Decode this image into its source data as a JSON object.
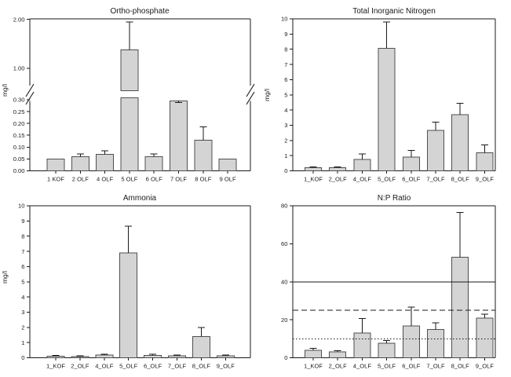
{
  "figure": {
    "background": "#ffffff",
    "bar_fill": "#d4d4d4",
    "bar_stroke": "#4f4f4f",
    "axis_color": "#1a1a1a"
  },
  "chart_data": [
    {
      "id": "ortho-phosphate",
      "type": "bar",
      "title": "Ortho-phosphate",
      "ylabel": "mg/l",
      "legend": "none",
      "grid": false,
      "categories": [
        "1 KOF",
        "2 OLF",
        "4 OLF",
        "5 OLF",
        "6 OLF",
        "7 OLF",
        "8 OLF",
        "9 OLF"
      ],
      "values": [
        0.05,
        0.06,
        0.07,
        1.38,
        0.06,
        0.295,
        0.13,
        0.05
      ],
      "errors_plus": [
        0,
        0.012,
        0.015,
        0.57,
        0.012,
        0.008,
        0.055,
        0
      ],
      "axis_break": {
        "lower_ylim": [
          0,
          0.3
        ],
        "lower_tick_values": [
          0,
          0.05,
          0.1,
          0.15,
          0.2,
          0.25,
          0.3
        ],
        "lower_tick_labels": [
          "0.00",
          "0.05",
          "0.10",
          "0.15",
          "0.20",
          "0.25",
          "0.30"
        ],
        "upper_tick_values": [
          1.0,
          2.0
        ],
        "upper_tick_labels": [
          "1.00",
          "2.00"
        ]
      }
    },
    {
      "id": "total-inorganic-nitrogen",
      "type": "bar",
      "title": "Total Inorganic Nitrogen",
      "ylabel": "mg/l",
      "legend": "none",
      "grid": false,
      "categories": [
        "1_KOF",
        "2_OLF",
        "4_OLF",
        "5_OLF",
        "6_OLF",
        "7_OLF",
        "8_OLF",
        "9_OLF"
      ],
      "values": [
        0.2,
        0.2,
        0.75,
        8.05,
        0.9,
        2.65,
        3.7,
        1.2
      ],
      "errors_plus": [
        0.07,
        0.07,
        0.35,
        1.75,
        0.45,
        0.55,
        0.75,
        0.5
      ],
      "ylim": [
        0,
        10
      ],
      "tick_values": [
        0,
        1,
        2,
        3,
        4,
        5,
        6,
        7,
        8,
        9,
        10
      ],
      "tick_labels": [
        "0",
        "1",
        "2",
        "3",
        "4",
        "5",
        "6",
        "7",
        "8",
        "9",
        "10"
      ]
    },
    {
      "id": "ammonia",
      "type": "bar",
      "title": "Ammonia",
      "ylabel": "mg/l",
      "legend": "none",
      "grid": false,
      "categories": [
        "1_KOF",
        "2_OLF",
        "4_OLF",
        "5_OLF",
        "6_OLF",
        "7_OLF",
        "8_OLF",
        "9_OLF"
      ],
      "values": [
        0.1,
        0.08,
        0.18,
        6.9,
        0.15,
        0.12,
        1.4,
        0.12
      ],
      "errors_plus": [
        0.05,
        0.04,
        0.06,
        1.75,
        0.07,
        0.05,
        0.6,
        0.05
      ],
      "ylim": [
        0,
        10
      ],
      "tick_values": [
        0,
        1,
        2,
        3,
        4,
        5,
        6,
        7,
        8,
        9,
        10
      ],
      "tick_labels": [
        "0",
        "1",
        "2",
        "3",
        "4",
        "5",
        "6",
        "7",
        "8",
        "9",
        "10"
      ]
    },
    {
      "id": "np-ratio",
      "type": "bar",
      "title": "N:P Ratio",
      "ylabel": "",
      "legend": "none",
      "grid": false,
      "categories": [
        "1_KOF",
        "2_OLF",
        "4_OLF",
        "5_OLF",
        "6_OLF",
        "7_OLF",
        "8_OLF",
        "9_OLF"
      ],
      "values": [
        4,
        3.2,
        13,
        7.7,
        16.8,
        14.8,
        53,
        20.8
      ],
      "errors_plus": [
        1,
        0.5,
        7.7,
        1.4,
        9.9,
        3.7,
        23.5,
        2.2
      ],
      "ylim": [
        0,
        80
      ],
      "tick_values": [
        0,
        20,
        40,
        60,
        80
      ],
      "tick_labels": [
        "0",
        "20",
        "40",
        "60",
        "80"
      ],
      "reference_lines": [
        {
          "y": 40,
          "style": "solid"
        },
        {
          "y": 25,
          "style": "dashed"
        },
        {
          "y": 10,
          "style": "dotted"
        }
      ]
    }
  ]
}
